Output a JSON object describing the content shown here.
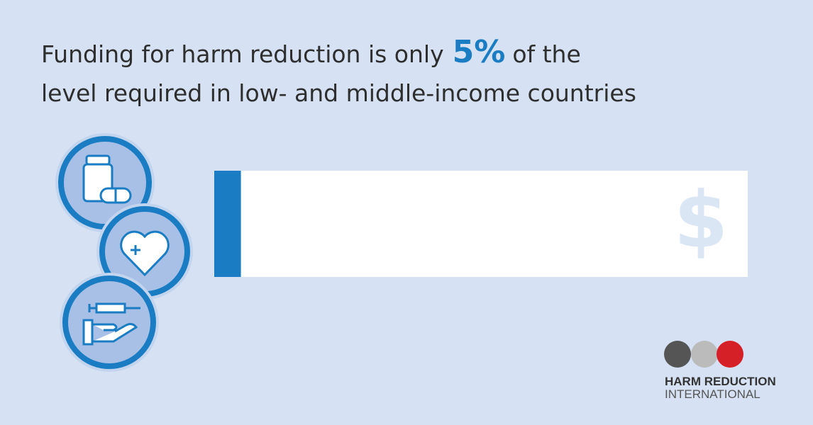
{
  "chart_data": {
    "type": "progress",
    "title_before": "Funding for harm reduction is only",
    "title_after": "of the",
    "subtitle": "level required in low- and middle-income countries",
    "values": [
      5
    ],
    "value_labels": [
      "5%"
    ],
    "xlim": [
      0,
      100
    ],
    "color": "#1a7dc4"
  },
  "logo": {
    "line1": "HARM REDUCTION",
    "line2": "INTERNATIONAL"
  }
}
